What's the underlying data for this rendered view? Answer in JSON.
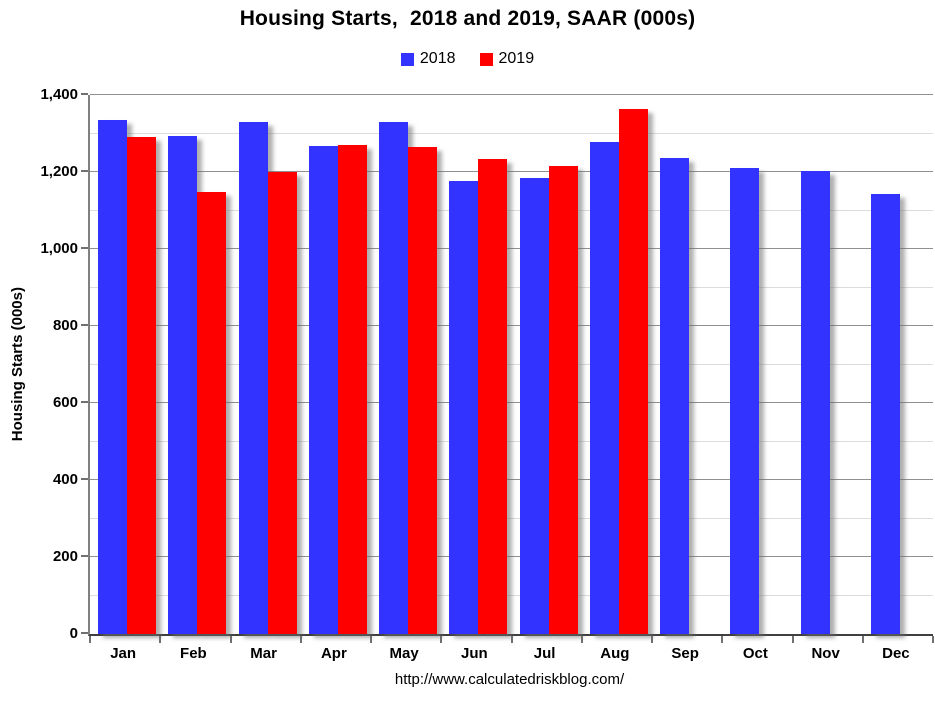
{
  "title": "Housing Starts,  2018 and 2019, SAAR (000s)",
  "footer_url": "http://www.calculatedriskblog.com/",
  "legend": {
    "items": [
      {
        "label": "2018",
        "color": "#3333ff"
      },
      {
        "label": "2019",
        "color": "#ff0000"
      }
    ]
  },
  "chart_data": {
    "type": "bar",
    "title": "Housing Starts,  2018 and 2019, SAAR (000s)",
    "xlabel": "",
    "ylabel": "Housing Starts (000s)",
    "ylim": [
      0,
      1400
    ],
    "ytick_major_step": 200,
    "ytick_minor_step": 100,
    "yticks": [
      {
        "value": 0,
        "label": "0"
      },
      {
        "value": 200,
        "label": "200"
      },
      {
        "value": 400,
        "label": "400"
      },
      {
        "value": 600,
        "label": "600"
      },
      {
        "value": 800,
        "label": "800"
      },
      {
        "value": 1000,
        "label": "1,000"
      },
      {
        "value": 1200,
        "label": "1,200"
      },
      {
        "value": 1400,
        "label": "1,400"
      }
    ],
    "grid": true,
    "legend_position": "top",
    "categories": [
      "Jan",
      "Feb",
      "Mar",
      "Apr",
      "May",
      "Jun",
      "Jul",
      "Aug",
      "Sep",
      "Oct",
      "Nov",
      "Dec"
    ],
    "series": [
      {
        "name": "2018",
        "color": "#3333ff",
        "values": [
          1334,
          1294,
          1330,
          1267,
          1330,
          1177,
          1184,
          1279,
          1237,
          1211,
          1202,
          1142
        ]
      },
      {
        "name": "2019",
        "color": "#ff0000",
        "values": [
          1291,
          1149,
          1199,
          1270,
          1264,
          1233,
          1215,
          1364,
          null,
          null,
          null,
          null
        ]
      }
    ]
  }
}
